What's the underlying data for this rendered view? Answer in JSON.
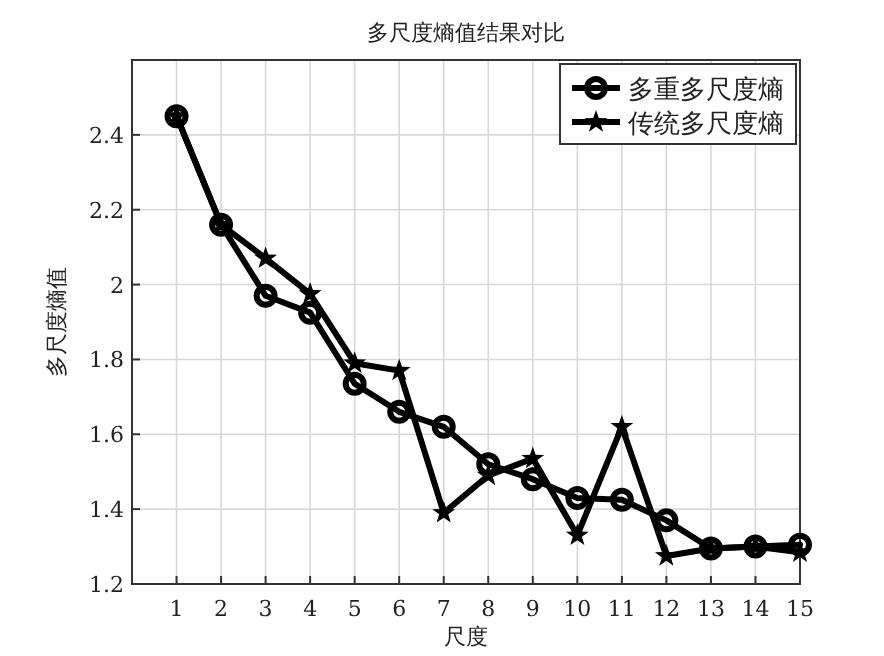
{
  "chart_data": {
    "type": "line",
    "title": "多尺度熵值结果对比",
    "xlabel": "尺度",
    "ylabel": "多尺度熵值",
    "x": [
      1,
      2,
      3,
      4,
      5,
      6,
      7,
      8,
      9,
      10,
      11,
      12,
      13,
      14,
      15
    ],
    "series": [
      {
        "name": "多重多尺度熵",
        "color": "#000000",
        "marker": "circle",
        "values": [
          2.45,
          2.16,
          1.97,
          1.925,
          1.735,
          1.66,
          1.62,
          1.52,
          1.48,
          1.43,
          1.425,
          1.37,
          1.295,
          1.3,
          1.305
        ]
      },
      {
        "name": "传统多尺度熵",
        "color": "#000000",
        "marker": "star",
        "values": [
          2.45,
          2.16,
          2.07,
          1.975,
          1.79,
          1.77,
          1.39,
          1.49,
          1.535,
          1.33,
          1.62,
          1.275,
          1.295,
          1.3,
          1.285
        ]
      }
    ],
    "xlim": [
      0,
      15
    ],
    "ylim": [
      1.2,
      2.6
    ],
    "xticks": [
      1,
      2,
      3,
      4,
      5,
      6,
      7,
      8,
      9,
      10,
      11,
      12,
      13,
      14,
      15
    ],
    "yticks": [
      1.2,
      1.4,
      1.6,
      1.8,
      2,
      2.2,
      2.4
    ],
    "grid": true,
    "legend": "top right",
    "line_style": "solid"
  }
}
